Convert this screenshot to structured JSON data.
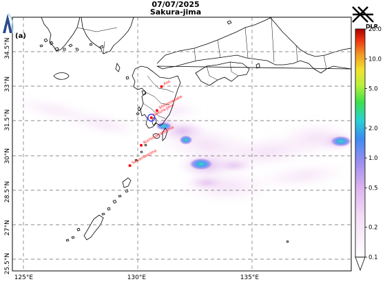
{
  "header": {
    "date": "07/07/2025",
    "volcano": "Sakura-jima",
    "panel_label": "(a)"
  },
  "logos": {
    "left_logo": "A",
    "right_logo": "DLR"
  },
  "axes": {
    "lat_ticks": [
      "34.5°N",
      "33°N",
      "31.5°N",
      "30°N",
      "28.5°N",
      "27°N",
      "25.5°N"
    ],
    "lon_ticks": [
      "125°E",
      "130°E",
      "135°E"
    ],
    "lon_range": [
      124.5,
      139.5
    ],
    "lat_range": [
      25.2,
      35.8
    ],
    "gridlines": true
  },
  "colorbar": {
    "tick_labels": [
      "20.0",
      "10.0",
      "5.0",
      "2.0",
      "1.0",
      "0.5",
      "0.2",
      "0.1"
    ],
    "scale": "log",
    "range": [
      0.1,
      20.0
    ],
    "colors": [
      "#ffffff",
      "#f0d0f0",
      "#d8a8e8",
      "#7878f0",
      "#2090f0",
      "#30e0c0",
      "#40e040",
      "#c0f040",
      "#f0e030",
      "#f09020",
      "#f03010",
      "#b00000"
    ]
  },
  "stations": {
    "color": "#ff0000",
    "items": [
      {
        "name": "Aso",
        "lon": 131.1,
        "lat": 32.9
      },
      {
        "name": "Shinmoedake",
        "lon": 130.9,
        "lat": 31.9
      },
      {
        "name": "Sakura-jima",
        "lon": 130.65,
        "lat": 31.6
      },
      {
        "name": "Kuchinoerabujima",
        "lon": 130.2,
        "lat": 30.45
      },
      {
        "name": "Suwanosejima",
        "lon": 129.7,
        "lat": 29.6
      }
    ]
  }
}
